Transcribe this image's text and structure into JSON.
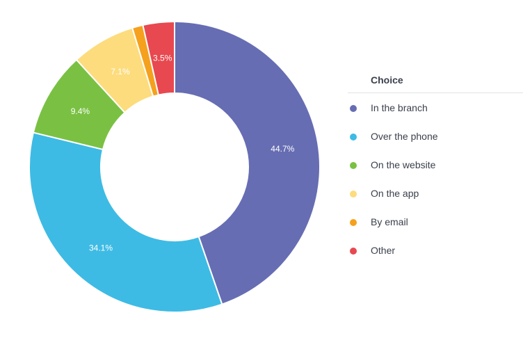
{
  "chart_data": {
    "type": "pie",
    "donut": true,
    "legend_title": "Choice",
    "legend_position": "right",
    "categories": [
      "In the branch",
      "Over the phone",
      "On the website",
      "On the app",
      "By email",
      "Other"
    ],
    "values": [
      44.7,
      34.1,
      9.4,
      7.1,
      1.2,
      3.5
    ],
    "labels": [
      "44.7%",
      "34.1%",
      "9.4%",
      "7.1%",
      "",
      "3.5%"
    ],
    "colors": [
      "#666db3",
      "#3dbbe4",
      "#7ac143",
      "#fddc7d",
      "#f5a11d",
      "#e8484f"
    ]
  }
}
